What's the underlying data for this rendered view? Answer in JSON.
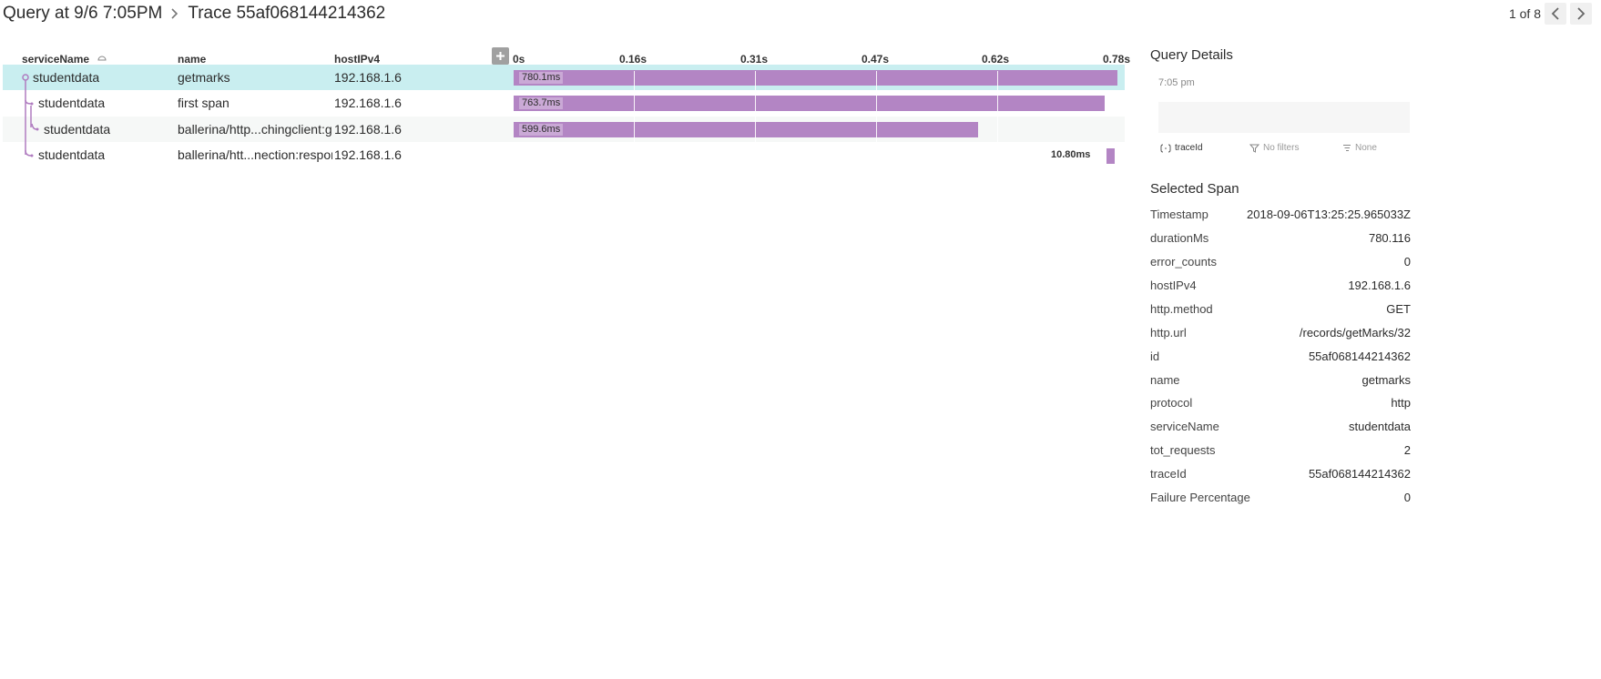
{
  "breadcrumb": {
    "query": "Query at 9/6 7:05PM",
    "trace": "Trace 55af068144214362"
  },
  "pager": {
    "text": "1 of 8"
  },
  "columns": {
    "service": "serviceName",
    "name": "name",
    "host": "hostIPv4"
  },
  "timeline": {
    "ticks": [
      "0s",
      "0.16s",
      "0.31s",
      "0.47s",
      "0.62s",
      "0.78s"
    ],
    "total_ms": 780.116
  },
  "rows": [
    {
      "service": "studentdata",
      "name": "getmarks",
      "host": "192.168.1.6",
      "start_ms": 0,
      "duration_label": "780.1ms",
      "duration_ms": 780.1,
      "depth": 0
    },
    {
      "service": "studentdata",
      "name": "first span",
      "host": "192.168.1.6",
      "start_ms": 0,
      "duration_label": "763.7ms",
      "duration_ms": 763.7,
      "depth": 1
    },
    {
      "service": "studentdata",
      "name": "ballerina/http...chingclient:get",
      "host": "192.168.1.6",
      "start_ms": 0,
      "duration_label": "599.6ms",
      "duration_ms": 599.6,
      "depth": 2
    },
    {
      "service": "studentdata",
      "name": "ballerina/htt...nection:respond",
      "host": "192.168.1.6",
      "start_ms": 760.5,
      "duration_label": "10.80ms",
      "duration_ms": 10.8,
      "depth": 1
    }
  ],
  "query_details": {
    "title": "Query Details",
    "time": "7:05 pm",
    "group_by": "traceId",
    "filters": "No filters",
    "sort": "None"
  },
  "selected_span": {
    "title": "Selected Span",
    "fields": [
      {
        "key": "Timestamp",
        "value": "2018-09-06T13:25:25.965033Z"
      },
      {
        "key": "durationMs",
        "value": "780.116"
      },
      {
        "key": "error_counts",
        "value": "0"
      },
      {
        "key": "hostIPv4",
        "value": "192.168.1.6"
      },
      {
        "key": "http.method",
        "value": "GET"
      },
      {
        "key": "http.url",
        "value": "/records/getMarks/32"
      },
      {
        "key": "id",
        "value": "55af068144214362"
      },
      {
        "key": "name",
        "value": "getmarks"
      },
      {
        "key": "protocol",
        "value": "http"
      },
      {
        "key": "serviceName",
        "value": "studentdata"
      },
      {
        "key": "tot_requests",
        "value": "2"
      },
      {
        "key": "traceId",
        "value": "55af068144214362"
      },
      {
        "key": "Failure Percentage",
        "value": "0"
      }
    ]
  },
  "colors": {
    "bar": "#b385c4",
    "selected_row": "#c9eef0",
    "tree_line": "#b07cc0"
  }
}
